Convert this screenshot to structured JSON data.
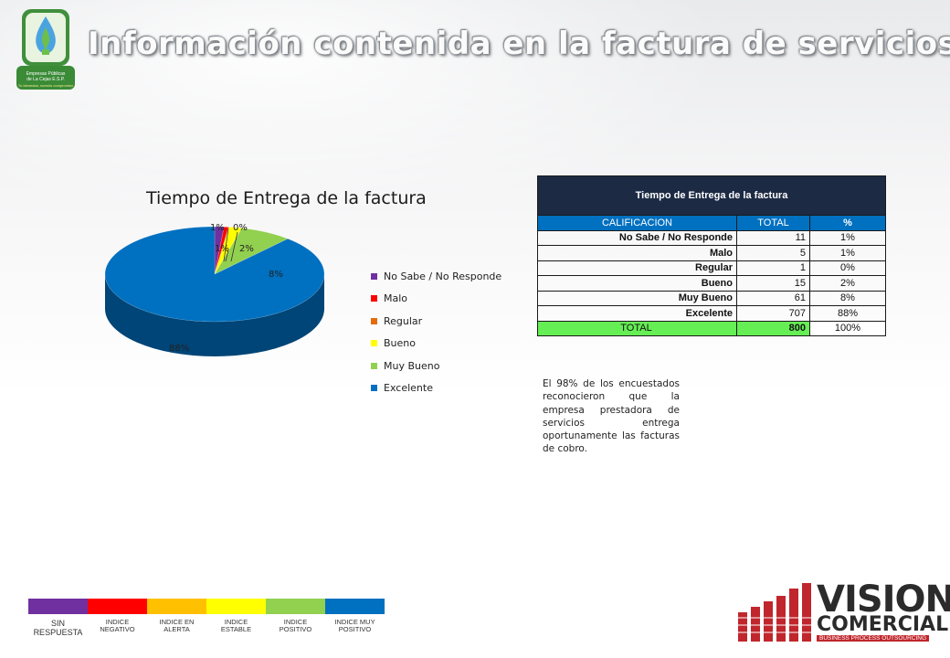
{
  "slide_title": "Información contenida en la factura de servicios.",
  "logo": {
    "text_lines": [
      "Empresas Públicas",
      "de La Cejas E.S.P."
    ],
    "tagline": "Tu bienestar, nuestro compromiso"
  },
  "chart_data": {
    "type": "pie",
    "title": "Tiempo de Entrega de la factura",
    "categories": [
      "No Sabe / No Responde",
      "Malo",
      "Regular",
      "Bueno",
      "Muy Bueno",
      "Excelente"
    ],
    "values": [
      11,
      5,
      1,
      15,
      61,
      707
    ],
    "percent_labels": [
      "1%",
      "1%",
      "0%",
      "2%",
      "8%",
      "88%"
    ],
    "colors": [
      "#7030a0",
      "#ff0000",
      "#e46c0a",
      "#ffff00",
      "#92d050",
      "#0070c0"
    ],
    "legend_position": "right",
    "style": "3d"
  },
  "table": {
    "title": "Tiempo de Entrega de la factura",
    "headers": [
      "CALIFICACION",
      "TOTAL",
      "%"
    ],
    "rows": [
      {
        "label": "No Sabe / No Responde",
        "total": "11",
        "pct": "1%"
      },
      {
        "label": "Malo",
        "total": "5",
        "pct": "1%"
      },
      {
        "label": "Regular",
        "total": "1",
        "pct": "0%"
      },
      {
        "label": "Bueno",
        "total": "15",
        "pct": "2%"
      },
      {
        "label": "Muy Bueno",
        "total": "61",
        "pct": "8%"
      },
      {
        "label": "Excelente",
        "total": "707",
        "pct": "88%"
      }
    ],
    "total_row": {
      "label": "TOTAL",
      "total": "800",
      "pct": "100%"
    }
  },
  "summary": "El 98% de los encuestados reconocieron que la empresa prestadora de servicios entrega oportunamente las facturas de cobro.",
  "scale": [
    {
      "label": "SIN RESPUESTA",
      "color": "#7030a0"
    },
    {
      "label": "INDICE NEGATIVO",
      "color": "#ff0000"
    },
    {
      "label": "INDICE EN ALERTA",
      "color": "#ffc000"
    },
    {
      "label": "INDICE ESTABLE",
      "color": "#ffff00"
    },
    {
      "label": "INDICE POSITIVO",
      "color": "#92d050"
    },
    {
      "label": "INDICE MUY POSITIVO",
      "color": "#0070c0"
    }
  ],
  "brand": {
    "name": "VISION",
    "sub": "COMERCIAL",
    "tagline": "BUSINESS PROCESS OUTSOURCING"
  }
}
